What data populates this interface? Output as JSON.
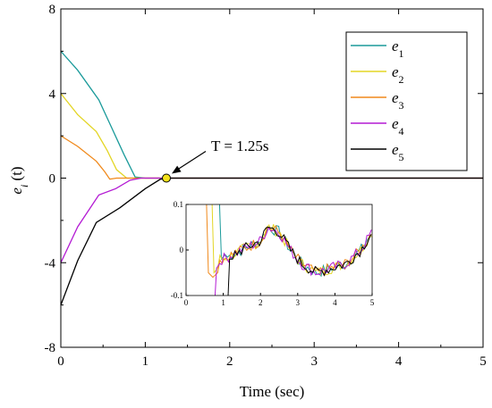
{
  "chart_data": {
    "type": "line",
    "xlabel": "Time (sec)",
    "ylabel": {
      "base": "e",
      "sub": "i",
      "rest": " (t)"
    },
    "xlim": [
      0,
      5
    ],
    "ylim": [
      -8,
      8
    ],
    "x_ticks": [
      "0",
      "1",
      "2",
      "3",
      "4",
      "5"
    ],
    "y_ticks": [
      "-8",
      "-4",
      "0",
      "4",
      "8"
    ],
    "grid": false,
    "legend_position": "top-right",
    "series": [
      {
        "name": "e",
        "sub": "1",
        "color": "#1a9a9a",
        "points": [
          [
            0,
            6
          ],
          [
            0.2,
            5.1
          ],
          [
            0.45,
            3.7
          ],
          [
            0.6,
            2.4
          ],
          [
            0.75,
            1.1
          ],
          [
            0.88,
            0.05
          ],
          [
            1.0,
            0
          ],
          [
            5,
            0
          ]
        ]
      },
      {
        "name": "e",
        "sub": "2",
        "color": "#e3d524",
        "points": [
          [
            0,
            4
          ],
          [
            0.2,
            3.0
          ],
          [
            0.42,
            2.2
          ],
          [
            0.55,
            1.3
          ],
          [
            0.66,
            0.4
          ],
          [
            0.78,
            0
          ],
          [
            5,
            0
          ]
        ]
      },
      {
        "name": "e",
        "sub": "3",
        "color": "#f0891b",
        "points": [
          [
            0,
            2
          ],
          [
            0.2,
            1.5
          ],
          [
            0.42,
            0.8
          ],
          [
            0.52,
            0.3
          ],
          [
            0.58,
            -0.05
          ],
          [
            0.66,
            0
          ],
          [
            5,
            0
          ]
        ]
      },
      {
        "name": "e",
        "sub": "4",
        "color": "#b31ad3",
        "points": [
          [
            0,
            -4
          ],
          [
            0.2,
            -2.3
          ],
          [
            0.45,
            -0.8
          ],
          [
            0.65,
            -0.5
          ],
          [
            0.82,
            -0.1
          ],
          [
            0.95,
            0
          ],
          [
            5,
            0
          ]
        ]
      },
      {
        "name": "e",
        "sub": "5",
        "color": "#000000",
        "points": [
          [
            0,
            -6
          ],
          [
            0.2,
            -3.9
          ],
          [
            0.42,
            -2.1
          ],
          [
            0.7,
            -1.4
          ],
          [
            1.0,
            -0.5
          ],
          [
            1.18,
            -0.05
          ],
          [
            1.25,
            0
          ],
          [
            5,
            0
          ]
        ]
      }
    ],
    "annotation": {
      "text": "T = 1.25s",
      "x": 1.25,
      "y": 0
    },
    "inset": {
      "xlim": [
        0,
        5
      ],
      "ylim": [
        -0.1,
        0.1
      ],
      "x_ticks": [
        "0",
        "1",
        "2",
        "3",
        "4",
        "5"
      ],
      "y_ticks": [
        "-0.1",
        "0",
        "0.1"
      ],
      "series": [
        {
          "entry_x": 0.9,
          "drop": [
            [
              0.9,
              0.1
            ],
            [
              0.95,
              -0.02
            ],
            [
              1.05,
              -0.01
            ]
          ]
        },
        {
          "entry_x": 0.7,
          "drop": [
            [
              0.7,
              0.1
            ],
            [
              0.75,
              -0.05
            ],
            [
              0.85,
              -0.04
            ]
          ]
        },
        {
          "entry_x": 0.55,
          "drop": [
            [
              0.55,
              0.1
            ],
            [
              0.6,
              -0.05
            ],
            [
              0.72,
              -0.06
            ],
            [
              0.85,
              -0.05
            ]
          ]
        },
        {
          "entry_x": 0.8,
          "drop": [
            [
              0.78,
              -0.1
            ],
            [
              0.82,
              -0.04
            ],
            [
              0.9,
              -0.03
            ]
          ]
        },
        {
          "entry_x": 1.15,
          "drop": [
            [
              1.13,
              -0.1
            ],
            [
              1.17,
              -0.02
            ],
            [
              1.25,
              -0.02
            ]
          ]
        }
      ],
      "base_curve": [
        [
          1.0,
          -0.02
        ],
        [
          1.5,
          0.0
        ],
        [
          2.0,
          0.02
        ],
        [
          2.2,
          0.05
        ],
        [
          2.5,
          0.04
        ],
        [
          2.8,
          0.0
        ],
        [
          3.1,
          -0.03
        ],
        [
          3.5,
          -0.05
        ],
        [
          3.9,
          -0.04
        ],
        [
          4.3,
          -0.03
        ],
        [
          4.7,
          0.0
        ],
        [
          5.0,
          0.04
        ]
      ]
    }
  }
}
